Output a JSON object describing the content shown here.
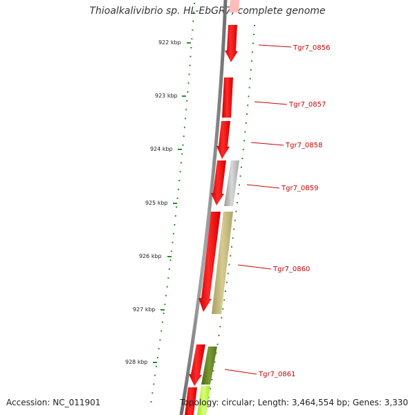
{
  "title": "Thioalkalivibrio sp. HL-EbGR7, complete genome",
  "accession": "Accession: NC_011901",
  "topology": "Topology: circular; Length: 3,464,554 bp; Genes: 3,330",
  "colors": {
    "backbone": "#808080",
    "forward_genes": "#ff0000",
    "unknown_gene": "#b0b0b0",
    "olive_gene": "#c2b87a",
    "dark_green_gene": "#5a7a1e",
    "lime_gene": "#b8ff3a",
    "tick": "#2a8a2a",
    "label": "#cc0000"
  },
  "kbp_ticks": [
    "922 kbp",
    "923 kbp",
    "924 kbp",
    "925 kbp",
    "926 kbp",
    "927 kbp",
    "928 kbp"
  ],
  "gene_labels": [
    "Tgr7_0856",
    "Tgr7_0857",
    "Tgr7_0858",
    "Tgr7_0859",
    "Tgr7_0860",
    "Tgr7_0861"
  ]
}
